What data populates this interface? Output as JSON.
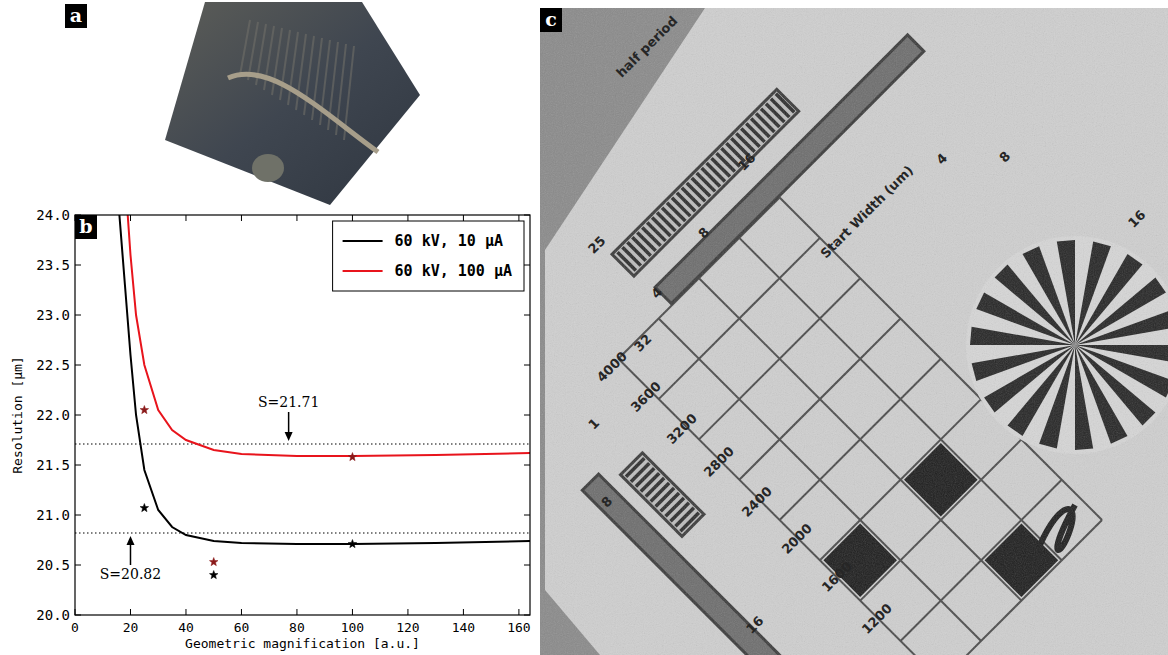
{
  "panel_labels": [
    "a",
    "b",
    "c"
  ],
  "chart_data": {
    "type": "line",
    "x_label": "Geometric magnification [a.u.]",
    "y_label": "Resolution [μm]",
    "xlim": [
      0,
      164
    ],
    "ylim": [
      20,
      24
    ],
    "xticks": [
      0,
      20,
      40,
      60,
      80,
      100,
      120,
      140,
      160
    ],
    "yticks": [
      {
        "value": 20,
        "label": "20.0"
      },
      20.5,
      {
        "value": 21,
        "label": "21.0"
      },
      21.5,
      {
        "value": 22,
        "label": "22.0"
      },
      22.5,
      {
        "value": 23,
        "label": "23.0"
      },
      23.5,
      {
        "value": 24,
        "label": "24.0"
      }
    ],
    "legend": "upper right",
    "series": [
      {
        "name": "60 kV, 10 μA",
        "type": "line",
        "line_style": "solid",
        "color": "#000000",
        "x": [
          16,
          18,
          20,
          22,
          25,
          30,
          35,
          40,
          50,
          60,
          80,
          100,
          130,
          164
        ],
        "values": [
          24.0,
          23.3,
          22.6,
          22.0,
          21.45,
          21.05,
          20.88,
          20.8,
          20.74,
          20.72,
          20.71,
          20.71,
          20.72,
          20.74
        ]
      },
      {
        "name": "60 kV, 100 μA",
        "type": "line",
        "line_style": "solid",
        "color": "#e8141c",
        "x": [
          19,
          20,
          22,
          25,
          30,
          35,
          40,
          50,
          60,
          80,
          100,
          130,
          164
        ],
        "values": [
          24.0,
          23.6,
          23.0,
          22.5,
          22.05,
          21.85,
          21.75,
          21.65,
          21.61,
          21.59,
          21.59,
          21.6,
          21.62
        ]
      },
      {
        "type": "scatter",
        "marker": "star",
        "color": "#000000",
        "x": [
          25,
          50,
          100
        ],
        "values": [
          21.07,
          20.4,
          20.71
        ]
      },
      {
        "type": "scatter",
        "marker": "star",
        "color": "#8b1a1a",
        "x": [
          25,
          50,
          100
        ],
        "values": [
          22.05,
          20.53,
          21.58
        ]
      }
    ],
    "reference_lines": [
      {
        "value": 20.82,
        "label": "S=20.82",
        "arrow_x": 20,
        "line_style": "dotted"
      },
      {
        "value": 21.71,
        "label": "S=21.71",
        "arrow_x": 77,
        "line_style": "dotted"
      }
    ]
  },
  "image_c": {
    "labels": [
      "half period",
      "25",
      "16",
      "8",
      "4",
      "Start Width (um)",
      "4",
      "8",
      "16",
      "32",
      "4000",
      "3600",
      "3200",
      "2800",
      "2400",
      "2000",
      "1600",
      "1200",
      "1",
      "8",
      "16"
    ]
  }
}
